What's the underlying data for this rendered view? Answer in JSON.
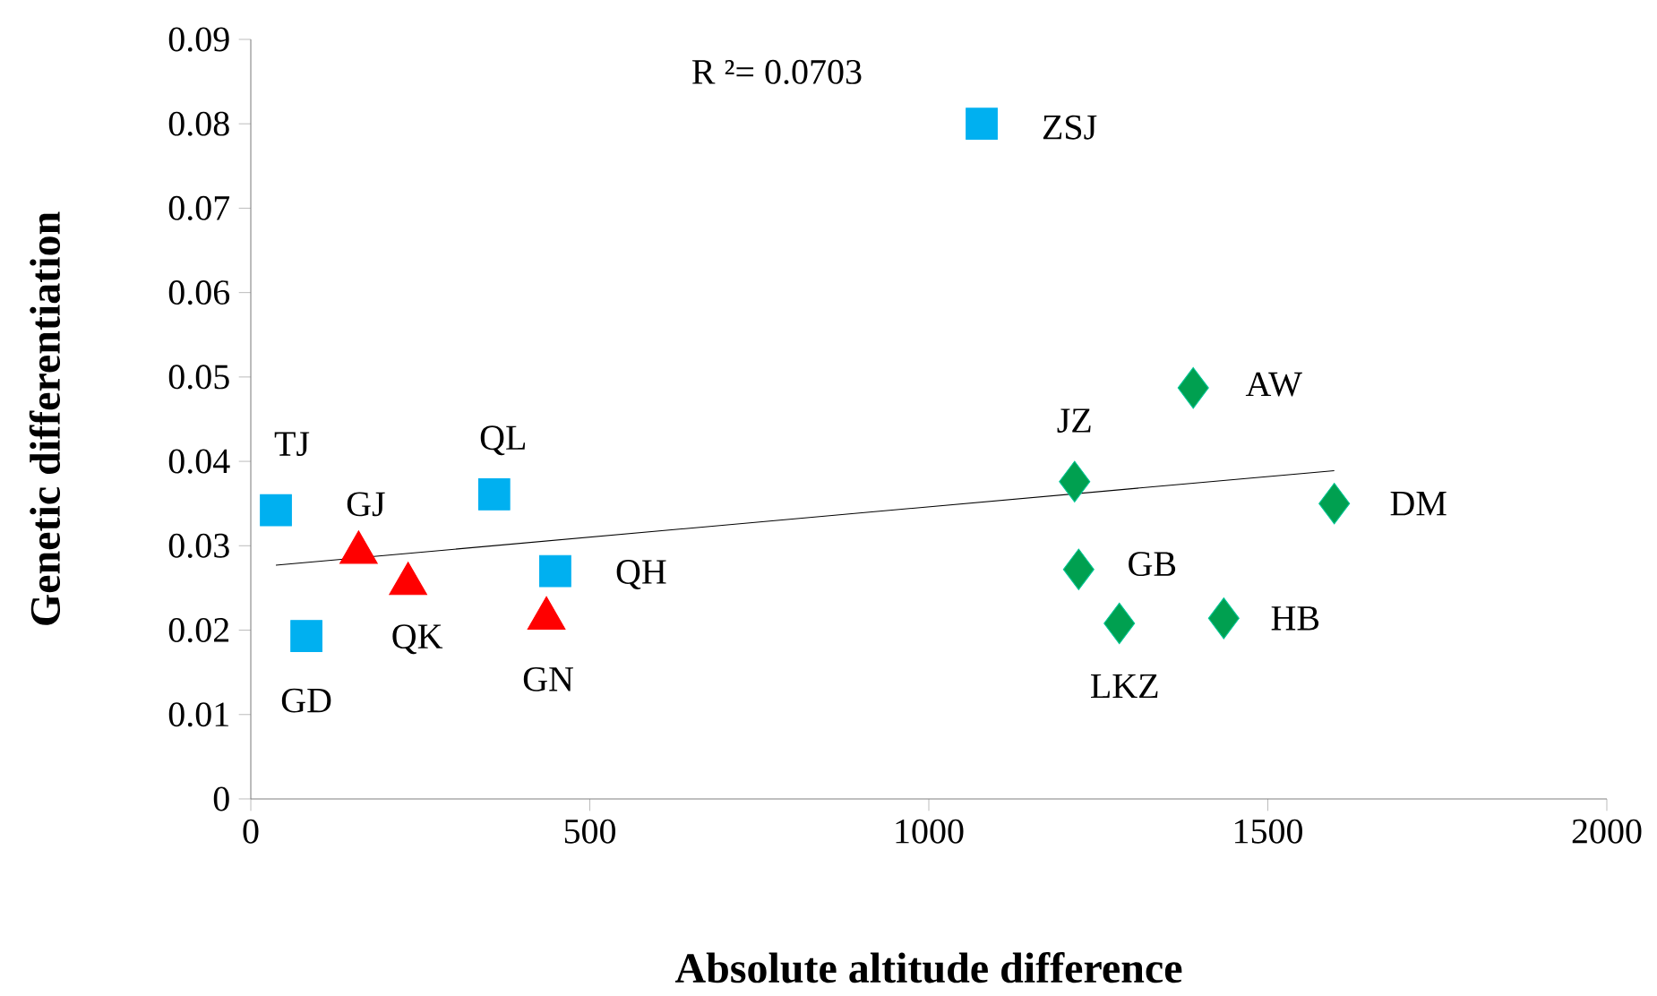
{
  "chart_data": {
    "type": "scatter",
    "xlabel": "Absolute altitude difference",
    "ylabel": "Genetic differentiation",
    "xlim": [
      0,
      2000
    ],
    "xticks": [
      0,
      500,
      1000,
      1500,
      2000
    ],
    "ylim": [
      0,
      0.09
    ],
    "yticks": [
      0,
      0.01,
      0.02,
      0.03,
      0.04,
      0.05,
      0.06,
      0.07,
      0.08,
      0.09
    ],
    "series": [
      {
        "marker": "square",
        "color": "#00b0f0",
        "x": [
          37,
          82,
          359,
          449,
          1078
        ],
        "values": [
          0.0342,
          0.0193,
          0.0361,
          0.027,
          0.08
        ]
      },
      {
        "marker": "triangle",
        "color": "#ff0000",
        "x": [
          159,
          232,
          436
        ],
        "values": [
          0.0292,
          0.0255,
          0.0214
        ]
      },
      {
        "marker": "diamond",
        "color": "#00a050",
        "x": [
          1215,
          1390,
          1598,
          1221,
          1281,
          1435
        ],
        "values": [
          0.0376,
          0.0487,
          0.035,
          0.0272,
          0.0208,
          0.0214
        ]
      },
      {
        "type": "line",
        "marker": "none",
        "color": "#000000",
        "x": [
          37,
          1598
        ],
        "values": [
          0.0277,
          0.0389
        ]
      }
    ],
    "annotations": [
      "R ²= 0.0703",
      {
        "text": "TJ",
        "x": 37,
        "y": 0.0342
      },
      {
        "text": "GD",
        "x": 82,
        "y": 0.0193
      },
      {
        "text": "QL",
        "x": 359,
        "y": 0.0361
      },
      {
        "text": "QH",
        "x": 449,
        "y": 0.027
      },
      {
        "text": "ZSJ",
        "x": 1078,
        "y": 0.08
      },
      {
        "text": "GJ",
        "x": 159,
        "y": 0.0292
      },
      {
        "text": "QK",
        "x": 232,
        "y": 0.0255
      },
      {
        "text": "GN",
        "x": 436,
        "y": 0.0214
      },
      {
        "text": "JZ",
        "x": 1215,
        "y": 0.0376
      },
      {
        "text": "AW",
        "x": 1390,
        "y": 0.0487
      },
      {
        "text": "DM",
        "x": 1598,
        "y": 0.035
      },
      {
        "text": "GB",
        "x": 1221,
        "y": 0.0272
      },
      {
        "text": "LKZ",
        "x": 1281,
        "y": 0.0208
      },
      {
        "text": "HB",
        "x": 1435,
        "y": 0.0214
      }
    ]
  }
}
